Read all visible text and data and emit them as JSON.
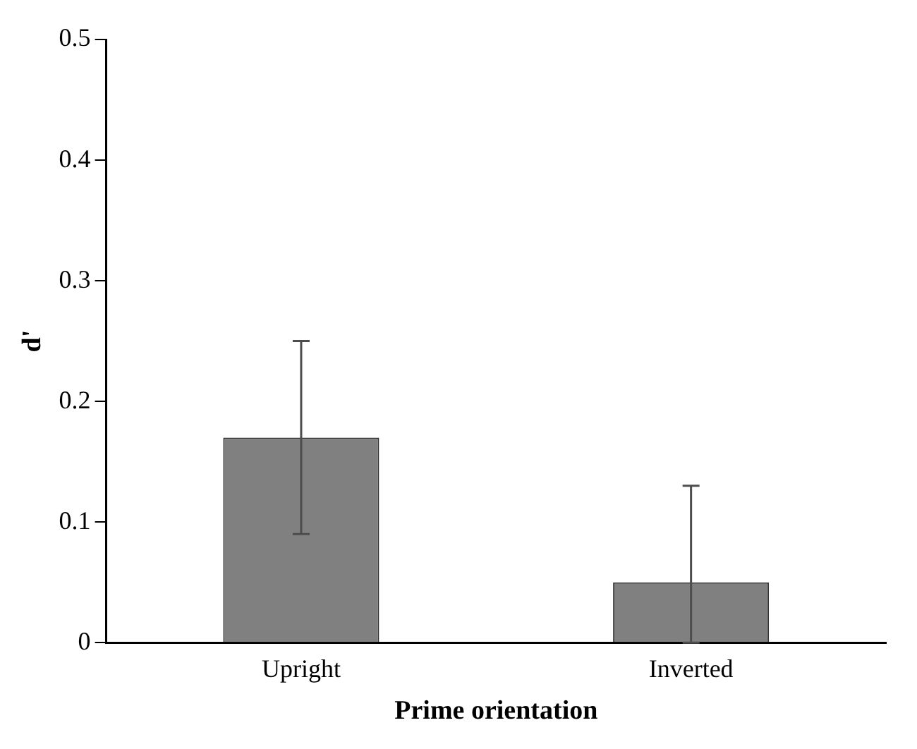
{
  "chart_data": {
    "type": "bar",
    "xlabel": "Prime orientation",
    "ylabel": "d'",
    "categories": [
      "Upright",
      "Inverted"
    ],
    "values": [
      0.17,
      0.05
    ],
    "errors": [
      [
        0.09,
        0.25
      ],
      [
        0,
        0.13
      ]
    ],
    "color": "#808080",
    "ylim": [
      0,
      0.5
    ],
    "yticks": [
      0,
      0.1,
      0.2,
      0.3,
      0.4,
      0.5
    ],
    "grid": false,
    "legend": false
  }
}
